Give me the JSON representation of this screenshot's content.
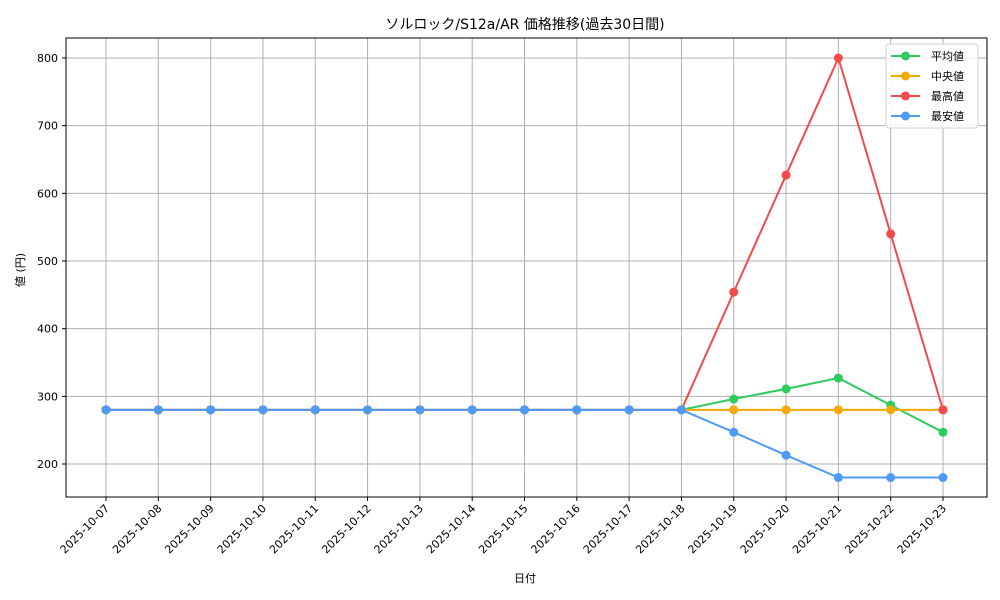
{
  "chart_data": {
    "type": "line",
    "title": "ソルロック/S12a/AR 価格推移(過去30日間)",
    "xlabel": "日付",
    "ylabel": "値 (円)",
    "ylim": [
      150,
      830
    ],
    "yticks": [
      200,
      300,
      400,
      500,
      600,
      700,
      800
    ],
    "grid": true,
    "legend_position": "upper right",
    "categories": [
      "2025-10-07",
      "2025-10-08",
      "2025-10-09",
      "2025-10-10",
      "2025-10-11",
      "2025-10-12",
      "2025-10-13",
      "2025-10-14",
      "2025-10-15",
      "2025-10-16",
      "2025-10-17",
      "2025-10-18",
      "2025-10-19",
      "2025-10-20",
      "2025-10-21",
      "2025-10-22",
      "2025-10-23"
    ],
    "series": [
      {
        "name": "平均値",
        "color": "#2ecc5f",
        "values": [
          280,
          280,
          280,
          280,
          280,
          280,
          280,
          280,
          280,
          280,
          280,
          280,
          296,
          311,
          327,
          287,
          247
        ]
      },
      {
        "name": "中央値",
        "color": "#f5a800",
        "values": [
          280,
          280,
          280,
          280,
          280,
          280,
          280,
          280,
          280,
          280,
          280,
          280,
          280,
          280,
          280,
          280,
          280
        ]
      },
      {
        "name": "最高値",
        "color": "#f24a4a",
        "values": [
          280,
          280,
          280,
          280,
          280,
          280,
          280,
          280,
          280,
          280,
          280,
          280,
          454,
          627,
          800,
          540,
          280
        ]
      },
      {
        "name": "最安値",
        "color": "#4d9bf7",
        "values": [
          280,
          280,
          280,
          280,
          280,
          280,
          280,
          280,
          280,
          280,
          280,
          280,
          247,
          213,
          180,
          180,
          180
        ]
      }
    ]
  }
}
